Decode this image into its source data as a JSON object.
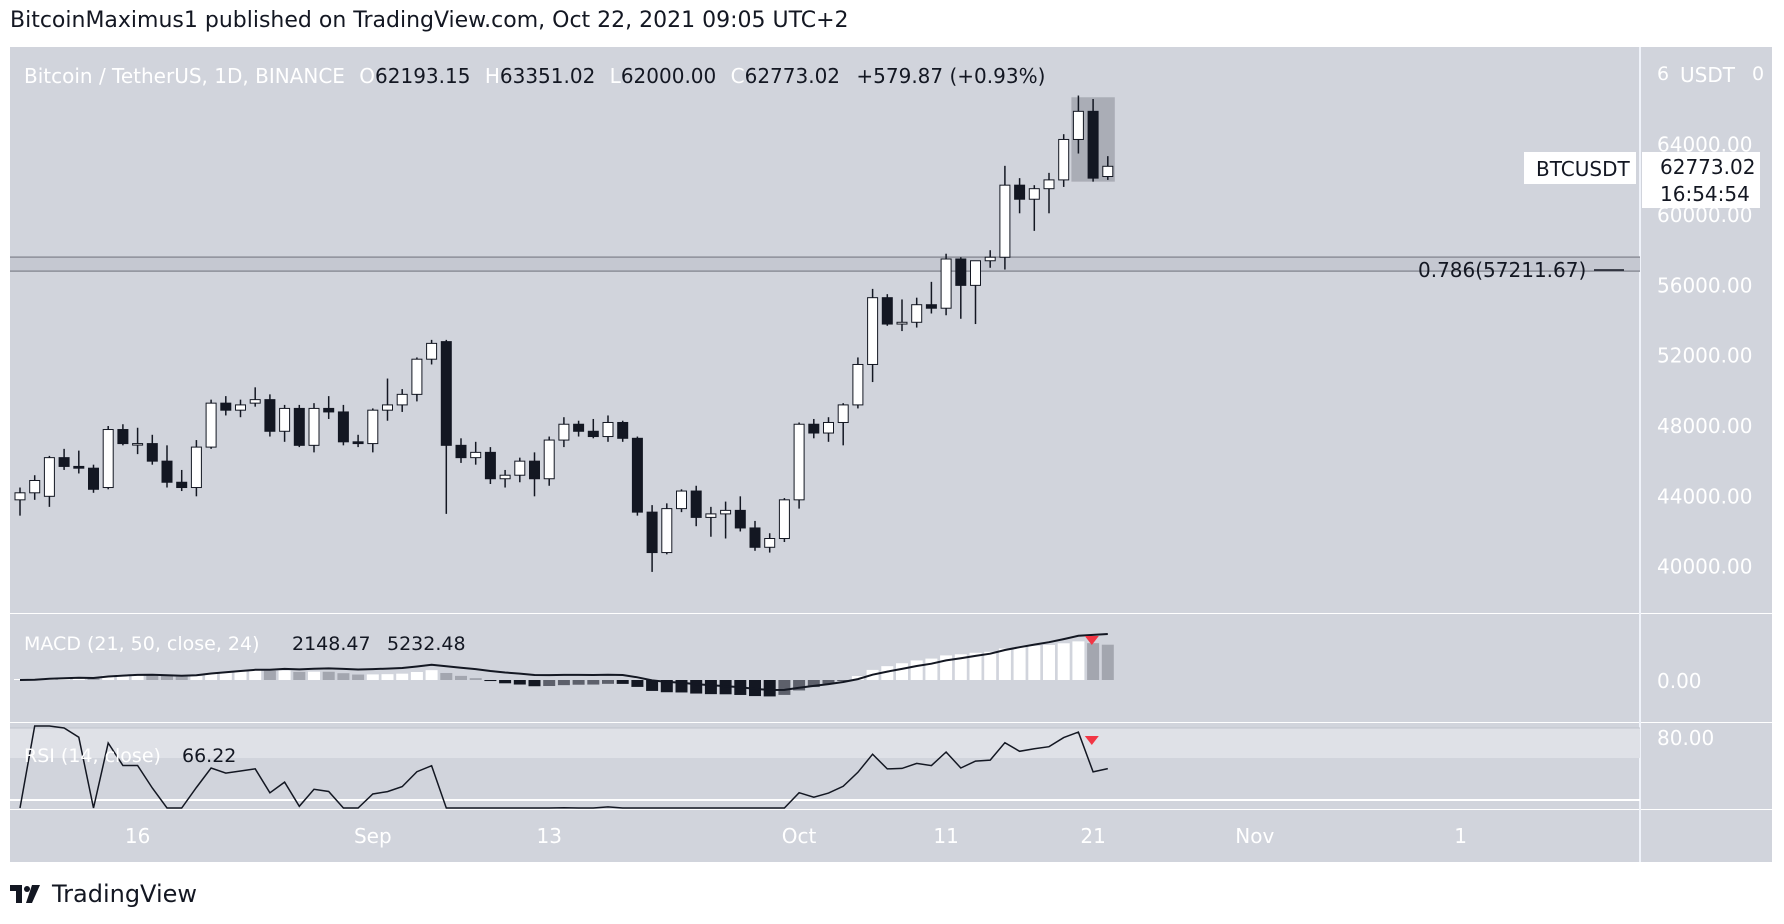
{
  "header": {
    "text": "BitcoinMaximus1 published on TradingView.com, Oct 22, 2021 09:05 UTC+2"
  },
  "legend": {
    "symbol": "Bitcoin / TetherUS, 1D, BINANCE",
    "o_label": "O",
    "o": "62193.15",
    "h_label": "H",
    "h": "63351.02",
    "l_label": "L",
    "l": "62000.00",
    "c_label": "C",
    "c": "62773.02",
    "change": "+579.87 (+0.93%)"
  },
  "axis": {
    "currency": "USDT",
    "corner_left": "6",
    "corner_right": "0"
  },
  "price_label": {
    "symbol": "BTCUSDT",
    "price": "62773.02",
    "countdown": "16:54:54"
  },
  "fib": {
    "text": "0.786(57211.67)",
    "value": 57211.67
  },
  "macd": {
    "label": "MACD (21, 50, close, 24)",
    "v1": "2148.47",
    "v2": "5232.48",
    "zero_label": "0.00"
  },
  "rsi": {
    "label": "RSI (14, close)",
    "value": "66.22",
    "level_label": "80.00",
    "upper": 80,
    "lower": 70
  },
  "brand": {
    "name": "TradingView"
  },
  "colors": {
    "pane_bg": "#d1d4dc",
    "up_candle": "#ffffff",
    "down_candle": "#131722",
    "line": "#131722",
    "hist_gray": "#a3a6af",
    "marker": "#f23645"
  },
  "chart_data": {
    "type": "candlestick",
    "series_name": "BTCUSDT",
    "price_range": [
      38500,
      67000
    ],
    "price_ticks": [
      40000,
      44000,
      48000,
      52000,
      56000,
      60000,
      64000
    ],
    "price_tick_labels": [
      "40000.00",
      "44000.00",
      "48000.00",
      "52000.00",
      "56000.00",
      "60000.00",
      "64000.00"
    ],
    "x_labels": [
      {
        "index": 8,
        "text": "16"
      },
      {
        "index": 24,
        "text": "Sep"
      },
      {
        "index": 36,
        "text": "13"
      },
      {
        "index": 53,
        "text": "Oct"
      },
      {
        "index": 63,
        "text": "11"
      },
      {
        "index": 73,
        "text": "21"
      },
      {
        "index": 84,
        "text": "Nov"
      },
      {
        "index": 98,
        "text": "1"
      }
    ],
    "candles": [
      {
        "o": 43800,
        "h": 44500,
        "l": 42900,
        "c": 44200
      },
      {
        "o": 44200,
        "h": 45200,
        "l": 43800,
        "c": 44900
      },
      {
        "o": 44000,
        "h": 46300,
        "l": 43400,
        "c": 46200
      },
      {
        "o": 46200,
        "h": 46700,
        "l": 45500,
        "c": 45700
      },
      {
        "o": 45700,
        "h": 46600,
        "l": 45300,
        "c": 45600
      },
      {
        "o": 45600,
        "h": 45800,
        "l": 44200,
        "c": 44400
      },
      {
        "o": 44500,
        "h": 48000,
        "l": 44400,
        "c": 47800
      },
      {
        "o": 47800,
        "h": 48100,
        "l": 46900,
        "c": 47000
      },
      {
        "o": 47000,
        "h": 47900,
        "l": 46400,
        "c": 47000
      },
      {
        "o": 47000,
        "h": 47500,
        "l": 45800,
        "c": 46000
      },
      {
        "o": 46000,
        "h": 46900,
        "l": 44500,
        "c": 44800
      },
      {
        "o": 44800,
        "h": 45500,
        "l": 44300,
        "c": 44500
      },
      {
        "o": 44500,
        "h": 47200,
        "l": 44000,
        "c": 46800
      },
      {
        "o": 46800,
        "h": 49500,
        "l": 46700,
        "c": 49300
      },
      {
        "o": 49300,
        "h": 49700,
        "l": 48600,
        "c": 48900
      },
      {
        "o": 48900,
        "h": 49500,
        "l": 48500,
        "c": 49200
      },
      {
        "o": 49300,
        "h": 50200,
        "l": 49100,
        "c": 49500
      },
      {
        "o": 49500,
        "h": 49800,
        "l": 47400,
        "c": 47700
      },
      {
        "o": 47700,
        "h": 49200,
        "l": 47100,
        "c": 49000
      },
      {
        "o": 49000,
        "h": 49200,
        "l": 46800,
        "c": 46900
      },
      {
        "o": 46900,
        "h": 49300,
        "l": 46500,
        "c": 49000
      },
      {
        "o": 49000,
        "h": 49700,
        "l": 48400,
        "c": 48800
      },
      {
        "o": 48800,
        "h": 49200,
        "l": 46900,
        "c": 47100
      },
      {
        "o": 47100,
        "h": 47500,
        "l": 46800,
        "c": 47000
      },
      {
        "o": 47000,
        "h": 49000,
        "l": 46500,
        "c": 48900
      },
      {
        "o": 48900,
        "h": 50700,
        "l": 48300,
        "c": 49200
      },
      {
        "o": 49200,
        "h": 50100,
        "l": 48800,
        "c": 49800
      },
      {
        "o": 49800,
        "h": 51900,
        "l": 49400,
        "c": 51800
      },
      {
        "o": 51800,
        "h": 52900,
        "l": 51500,
        "c": 52700
      },
      {
        "o": 52800,
        "h": 52900,
        "l": 43000,
        "c": 46900
      },
      {
        "o": 46900,
        "h": 47300,
        "l": 45900,
        "c": 46200
      },
      {
        "o": 46200,
        "h": 47100,
        "l": 45800,
        "c": 46500
      },
      {
        "o": 46500,
        "h": 46800,
        "l": 44700,
        "c": 45000
      },
      {
        "o": 45000,
        "h": 45500,
        "l": 44500,
        "c": 45200
      },
      {
        "o": 45200,
        "h": 46200,
        "l": 44800,
        "c": 46000
      },
      {
        "o": 46000,
        "h": 46500,
        "l": 44000,
        "c": 45000
      },
      {
        "o": 45000,
        "h": 47400,
        "l": 44600,
        "c": 47200
      },
      {
        "o": 47200,
        "h": 48500,
        "l": 46800,
        "c": 48100
      },
      {
        "o": 48100,
        "h": 48300,
        "l": 47400,
        "c": 47700
      },
      {
        "o": 47700,
        "h": 48400,
        "l": 47300,
        "c": 47400
      },
      {
        "o": 47400,
        "h": 48600,
        "l": 47100,
        "c": 48200
      },
      {
        "o": 48200,
        "h": 48300,
        "l": 47100,
        "c": 47300
      },
      {
        "o": 47300,
        "h": 47400,
        "l": 42900,
        "c": 43100
      },
      {
        "o": 43100,
        "h": 43500,
        "l": 39700,
        "c": 40800
      },
      {
        "o": 40800,
        "h": 43600,
        "l": 40700,
        "c": 43300
      },
      {
        "o": 43300,
        "h": 44400,
        "l": 43100,
        "c": 44300
      },
      {
        "o": 44300,
        "h": 44600,
        "l": 42300,
        "c": 42800
      },
      {
        "o": 42800,
        "h": 43400,
        "l": 41700,
        "c": 43000
      },
      {
        "o": 43000,
        "h": 43700,
        "l": 41600,
        "c": 43200
      },
      {
        "o": 43200,
        "h": 44000,
        "l": 42000,
        "c": 42200
      },
      {
        "o": 42200,
        "h": 42600,
        "l": 40900,
        "c": 41100
      },
      {
        "o": 41100,
        "h": 41900,
        "l": 40800,
        "c": 41600
      },
      {
        "o": 41600,
        "h": 43900,
        "l": 41400,
        "c": 43800
      },
      {
        "o": 43800,
        "h": 48200,
        "l": 43300,
        "c": 48100
      },
      {
        "o": 48100,
        "h": 48400,
        "l": 47300,
        "c": 47600
      },
      {
        "o": 47600,
        "h": 48500,
        "l": 47100,
        "c": 48200
      },
      {
        "o": 48200,
        "h": 49300,
        "l": 46900,
        "c": 49200
      },
      {
        "o": 49200,
        "h": 51900,
        "l": 49000,
        "c": 51500
      },
      {
        "o": 51500,
        "h": 55800,
        "l": 50500,
        "c": 55300
      },
      {
        "o": 55300,
        "h": 55500,
        "l": 53700,
        "c": 53800
      },
      {
        "o": 53800,
        "h": 55200,
        "l": 53400,
        "c": 53900
      },
      {
        "o": 53900,
        "h": 55300,
        "l": 53600,
        "c": 54900
      },
      {
        "o": 54900,
        "h": 56200,
        "l": 54400,
        "c": 54700
      },
      {
        "o": 54700,
        "h": 57800,
        "l": 54300,
        "c": 57500
      },
      {
        "o": 57500,
        "h": 57600,
        "l": 54100,
        "c": 56000
      },
      {
        "o": 56000,
        "h": 57200,
        "l": 53800,
        "c": 57400
      },
      {
        "o": 57400,
        "h": 58000,
        "l": 57000,
        "c": 57600
      },
      {
        "o": 57600,
        "h": 62800,
        "l": 56900,
        "c": 61700
      },
      {
        "o": 61700,
        "h": 62100,
        "l": 60100,
        "c": 60900
      },
      {
        "o": 60900,
        "h": 61700,
        "l": 59100,
        "c": 61500
      },
      {
        "o": 61500,
        "h": 62400,
        "l": 60100,
        "c": 62000
      },
      {
        "o": 62000,
        "h": 64600,
        "l": 61600,
        "c": 64300
      },
      {
        "o": 64300,
        "h": 66800,
        "l": 63500,
        "c": 65900
      },
      {
        "o": 65900,
        "h": 66600,
        "l": 61900,
        "c": 62100
      },
      {
        "o": 62193,
        "h": 63351,
        "l": 62000,
        "c": 62773
      }
    ]
  }
}
